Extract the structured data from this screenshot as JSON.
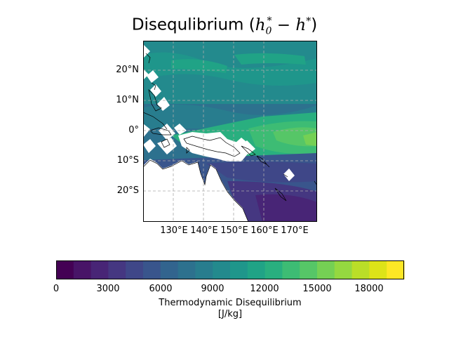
{
  "title": {
    "prefix": "Disequlibrium (",
    "h0": "h",
    "sub0": "0",
    "star0": "*",
    "minus": " − ",
    "h": "h",
    "star": "*",
    "suffix": ")"
  },
  "map": {
    "region": "Western Pacific / Maritime Continent / Australia",
    "lat_labels": [
      "20°N",
      "10°N",
      "0°",
      "10°S",
      "20°S"
    ],
    "lon_labels": [
      "130°E",
      "140°E",
      "150°E",
      "160°E",
      "170°E"
    ],
    "lat_range": [
      -30,
      30
    ],
    "lon_range": [
      121,
      179
    ],
    "gridlines": "dashed",
    "colormap": "viridis",
    "land_masked": true
  },
  "colorbar": {
    "ticks": [
      "0",
      "3000",
      "6000",
      "9000",
      "12000",
      "15000",
      "18000"
    ],
    "range": [
      0,
      20000
    ],
    "levels": 20,
    "label_line1": "Thermodynamic Disequilibrium",
    "label_line2": "[J/kg]",
    "colors": [
      "#440154",
      "#481467",
      "#482576",
      "#453781",
      "#3f4788",
      "#39558c",
      "#32648e",
      "#2d718e",
      "#287d8e",
      "#238a8d",
      "#1f968b",
      "#20a386",
      "#29af7f",
      "#3dbc74",
      "#56c667",
      "#75d054",
      "#95d840",
      "#bade28",
      "#dde318",
      "#fde725"
    ]
  }
}
